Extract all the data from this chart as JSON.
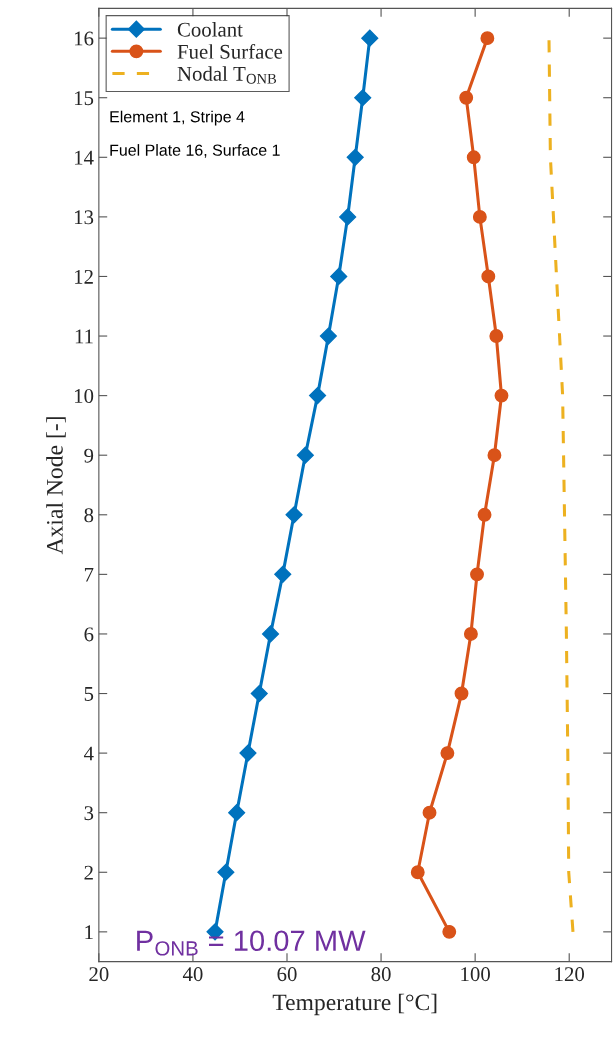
{
  "chart_data": {
    "type": "line",
    "xlabel": "Temperature [°C]",
    "ylabel": "Axial Node [-]",
    "xlim": [
      20,
      129
    ],
    "xticks": [
      20,
      40,
      60,
      80,
      100,
      120
    ],
    "ylim": [
      0.5,
      16.5
    ],
    "yticks": [
      1,
      2,
      3,
      4,
      5,
      6,
      7,
      8,
      9,
      10,
      11,
      12,
      13,
      14,
      15,
      16
    ],
    "grid": false,
    "legend": "top left",
    "series": [
      {
        "name": "Coolant",
        "color": "#0072bd",
        "marker": "diamond",
        "line_style": "solid",
        "x": [
          44.7,
          47.0,
          49.3,
          51.7,
          54.1,
          56.5,
          59.1,
          61.5,
          63.9,
          66.5,
          68.8,
          71.0,
          72.9,
          74.5,
          76.1,
          77.6
        ],
        "values": [
          1,
          2,
          3,
          4,
          5,
          6,
          7,
          8,
          9,
          10,
          11,
          12,
          13,
          14,
          15,
          16
        ]
      },
      {
        "name": "Fuel Surface",
        "color": "#d95319",
        "marker": "circle",
        "line_style": "solid",
        "x": [
          94.5,
          87.8,
          90.3,
          94.1,
          97.1,
          99.1,
          100.4,
          102.0,
          104.1,
          105.6,
          104.5,
          102.8,
          101.0,
          99.7,
          98.1,
          102.6
        ],
        "values": [
          1,
          2,
          3,
          4,
          5,
          6,
          7,
          8,
          9,
          10,
          11,
          12,
          13,
          14,
          15,
          16
        ]
      },
      {
        "name": "Nodal T$_{ONB}$",
        "color": "#edb120",
        "marker": "none",
        "line_style": "dashed",
        "x": [
          120.8,
          119.9,
          119.7,
          119.4,
          119.0,
          118.6,
          117.3,
          116.0,
          115.7
        ],
        "values": [
          1,
          2,
          4,
          6,
          8,
          10,
          12,
          14,
          16
        ]
      }
    ],
    "annotations": [
      "Element 1, Stripe 4",
      "Fuel Plate 16, Surface 1",
      "P$_{ONB}$ = 10.07 MW"
    ]
  }
}
